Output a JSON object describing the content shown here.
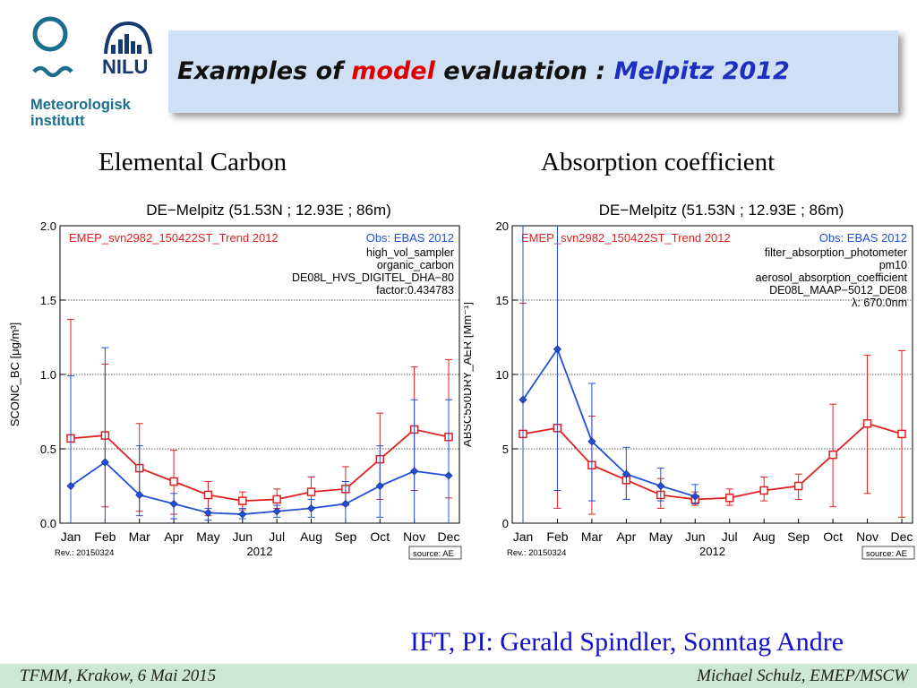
{
  "slide": {
    "title_part1": "Examples of ",
    "title_part2": "model",
    "title_part3": " evaluation : ",
    "title_part4": "Melpitz 2012",
    "caption_left": "Elemental Carbon",
    "caption_right": "Absorption coefficient",
    "credit": "IFT, PI: Gerald Spindler, Sonntag Andre",
    "footer_left": "TFMM, Krakow, 6 Mai 2015",
    "footer_right": "Michael Schulz, EMEP/MSCW",
    "logo_meteo": "Meteorologisk institutt",
    "logo_nilu": "NILU"
  },
  "colors": {
    "model": "#e02020",
    "obs": "#2050d8",
    "title_bg": "#cfe0f5",
    "footer_bg": "#cce8d4",
    "logo_teal": "#1b6e8c",
    "logo_navy": "#163a70"
  },
  "chart_data": [
    {
      "type": "line",
      "title": "DE−Melpitz (51.53N ; 12.93E ; 86m)",
      "model_label": "EMEP_svn2982_150422ST_Trend 2012",
      "obs_label": "Obs: EBAS 2012",
      "info": [
        "high_vol_sampler",
        "organic_carbon",
        "DE08L_HVS_DIGITEL_DHA−80",
        "factor:0.434783"
      ],
      "ylabel": "SCONC_BC [μg/m³]",
      "xlabel": "2012",
      "rev": "Rev.: 20150324",
      "source": "source: AE",
      "ylim": [
        0,
        2.0
      ],
      "yticks": [
        0.0,
        0.5,
        1.0,
        1.5,
        2.0
      ],
      "ytick_labels": [
        "0.0",
        "0.5",
        "1.0",
        "1.5",
        "2.0"
      ],
      "categories": [
        "Jan",
        "Feb",
        "Mar",
        "Apr",
        "May",
        "Jun",
        "Jul",
        "Aug",
        "Sep",
        "Oct",
        "Nov",
        "Dec"
      ],
      "grid": "horizontal dashed",
      "series": [
        {
          "name": "EMEP_svn2982_150422ST_Trend 2012",
          "values": [
            0.57,
            0.59,
            0.37,
            0.28,
            0.19,
            0.15,
            0.16,
            0.21,
            0.23,
            0.43,
            0.63,
            0.58
          ],
          "err_low": [
            0.0,
            0.11,
            0.08,
            0.06,
            0.05,
            0.09,
            0.1,
            0.1,
            0.12,
            0.16,
            0.22,
            0.17
          ],
          "err_high": [
            1.37,
            1.07,
            0.67,
            0.49,
            0.28,
            0.21,
            0.23,
            0.31,
            0.38,
            0.74,
            1.05,
            1.1
          ]
        },
        {
          "name": "Obs: EBAS 2012",
          "values": [
            0.25,
            0.41,
            0.19,
            0.13,
            0.07,
            0.06,
            0.08,
            0.1,
            0.13,
            0.25,
            0.35,
            0.32
          ],
          "err_low": [
            0.0,
            0.0,
            0.05,
            0.03,
            0.02,
            0.03,
            0.04,
            0.04,
            0.0,
            0.04,
            0.0,
            0.0
          ],
          "err_high": [
            0.99,
            1.18,
            0.52,
            0.2,
            0.1,
            0.1,
            0.12,
            0.16,
            0.28,
            0.52,
            0.83,
            0.83
          ]
        }
      ]
    },
    {
      "type": "line",
      "title": "DE−Melpitz (51.53N ; 12.93E ; 86m)",
      "model_label": "EMEP_svn2982_150422ST_Trend 2012",
      "obs_label": "Obs: EBAS 2012",
      "info": [
        "filter_absorption_photometer",
        "pm10",
        "aerosol_absorption_coefficient",
        "DE08L_MAAP−5012_DE08",
        "λ: 670.0nm"
      ],
      "ylabel": "ABSC550DRY_AER [Mm⁻¹]",
      "xlabel": "2012",
      "rev": "Rev.: 20150324",
      "source": "source: AE",
      "ylim": [
        0,
        20
      ],
      "yticks": [
        0,
        5,
        10,
        15,
        20
      ],
      "ytick_labels": [
        "0",
        "5",
        "10",
        "15",
        "20"
      ],
      "categories": [
        "Jan",
        "Feb",
        "Mar",
        "Apr",
        "May",
        "Jun",
        "Jul",
        "Aug",
        "Sep",
        "Oct",
        "Nov",
        "Dec"
      ],
      "grid": "horizontal dashed",
      "series": [
        {
          "name": "EMEP_svn2982_150422ST_Trend 2012",
          "values": [
            6.0,
            6.4,
            3.9,
            2.9,
            1.9,
            1.6,
            1.7,
            2.2,
            2.5,
            4.6,
            6.7,
            6.0
          ],
          "err_low": [
            0.0,
            1.0,
            0.6,
            1.6,
            1.0,
            1.2,
            1.2,
            1.5,
            1.6,
            1.1,
            2.0,
            0.4
          ],
          "err_high": [
            14.8,
            20.0,
            7.2,
            3.3,
            3.0,
            2.1,
            2.3,
            3.1,
            3.3,
            8.0,
            11.3,
            11.6
          ]
        },
        {
          "name": "Obs: EBAS 2012",
          "values": [
            8.3,
            11.7,
            5.5,
            3.3,
            2.5,
            1.8,
            null,
            null,
            null,
            null,
            null,
            null
          ],
          "err_low": [
            0.0,
            2.2,
            1.5,
            1.6,
            1.5,
            1.3,
            null,
            null,
            null,
            null,
            null,
            null
          ],
          "err_high": [
            20.0,
            20.0,
            9.4,
            5.1,
            3.7,
            2.6,
            null,
            null,
            null,
            null,
            null,
            null
          ]
        }
      ]
    }
  ]
}
